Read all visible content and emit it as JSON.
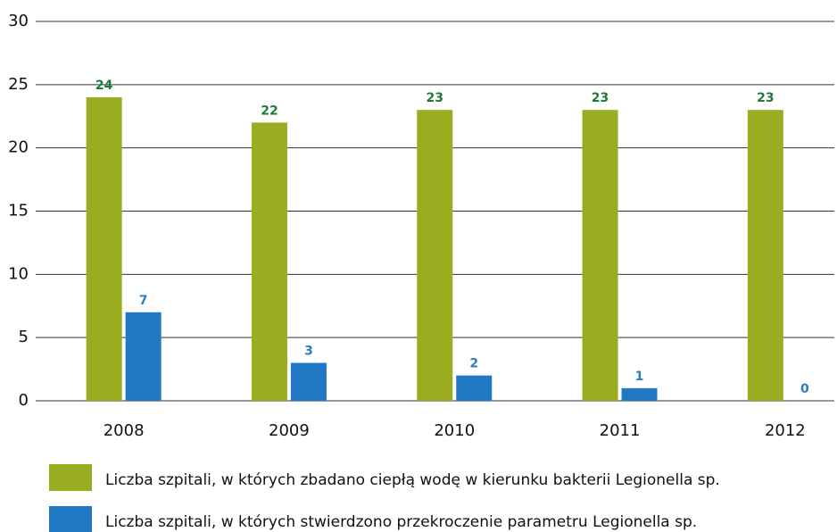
{
  "chart_data": {
    "type": "bar",
    "categories": [
      "2008",
      "2009",
      "2010",
      "2011",
      "2012"
    ],
    "series": [
      {
        "name": "Liczba szpitali, w których zbadano ciepłą wodę w kierunku bakterii Legionella sp.",
        "color": "#9aad21",
        "label_color": "#1e7b3a",
        "values": [
          24,
          22,
          23,
          23,
          23
        ]
      },
      {
        "name": "Liczba szpitali, w których stwierdzono przekroczenie parametru Legionella sp.",
        "color": "#2179c6",
        "label_color": "#2a7fc1",
        "values": [
          7,
          3,
          2,
          1,
          0
        ]
      }
    ],
    "ylim": [
      0,
      30
    ],
    "yticks": [
      0,
      5,
      10,
      15,
      20,
      25,
      30
    ],
    "grid": true,
    "legend": "bottom"
  }
}
